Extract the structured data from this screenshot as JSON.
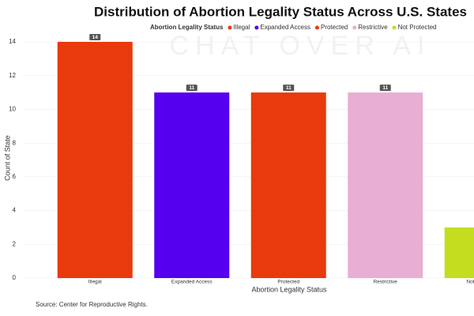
{
  "chart_data": {
    "type": "bar",
    "title": "Distribution of Abortion Legality Status Across U.S. States",
    "legend_title": "Abortion Legality Status",
    "categories": [
      "Illegal",
      "Expanded Access",
      "Protected",
      "Restrictive",
      "Not Protected"
    ],
    "values": [
      14,
      11,
      11,
      11,
      3
    ],
    "colors": [
      "#e83a0c",
      "#5500ee",
      "#e83a0c",
      "#e8aed4",
      "#c4dd1e"
    ],
    "x_label": "Abortion Legality Status",
    "y_label": "Count of State",
    "ylim": [
      0,
      14
    ],
    "yticks": [
      0,
      2,
      4,
      6,
      8,
      10,
      12,
      14
    ],
    "grid": true,
    "source": "Source:  Center for Reproductive Rights.",
    "watermark": "CHAT OVER AI"
  }
}
